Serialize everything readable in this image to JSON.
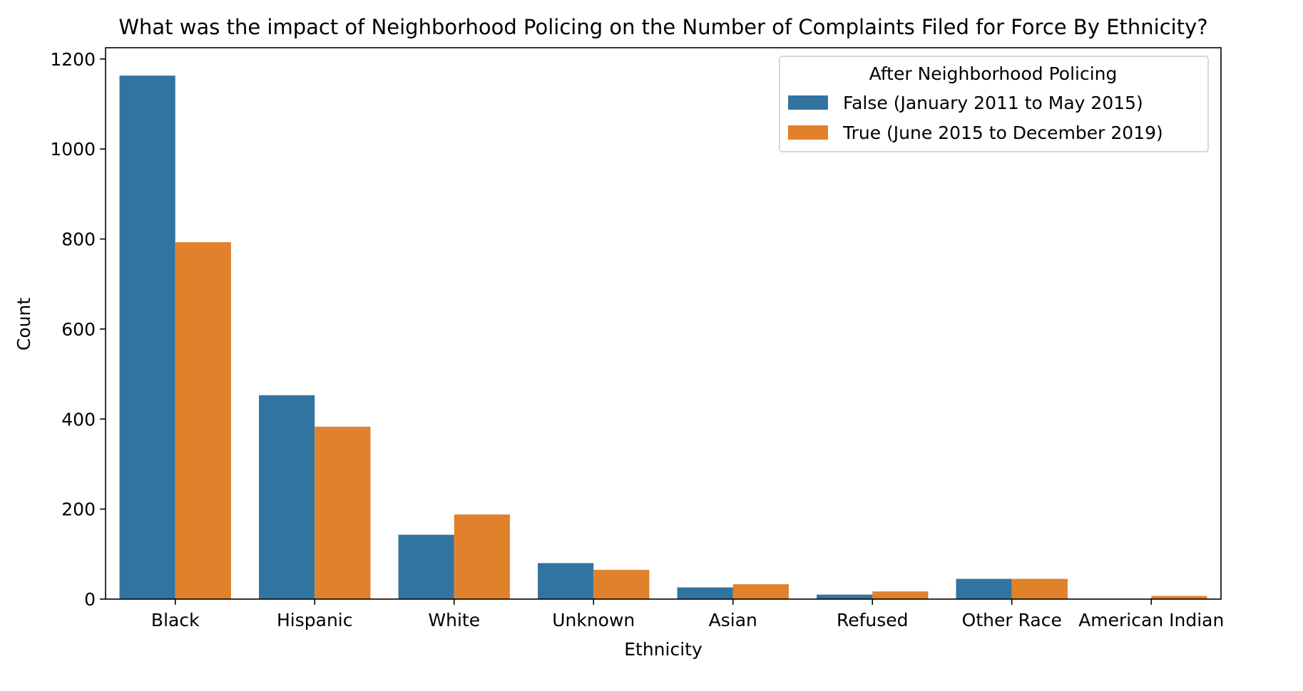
{
  "chart_data": {
    "type": "bar",
    "title": "What was the impact of Neighborhood Policing on the Number of Complaints Filed for Force By Ethnicity?",
    "xlabel": "Ethnicity",
    "ylabel": "Count",
    "ylim": [
      0,
      1225
    ],
    "yticks": [
      0,
      200,
      400,
      600,
      800,
      1000,
      1200
    ],
    "categories": [
      "Black",
      "Hispanic",
      "White",
      "Unknown",
      "Asian",
      "Refused",
      "Other Race",
      "American Indian"
    ],
    "legend": {
      "title": "After Neighborhood Policing",
      "placement": "top-right"
    },
    "series": [
      {
        "name": "False (January 2011 to May 2015)",
        "color": "#3274a1",
        "values": [
          1163,
          453,
          143,
          80,
          26,
          10,
          45,
          0
        ]
      },
      {
        "name": "True (June 2015 to December 2019)",
        "color": "#e1812c",
        "values": [
          793,
          383,
          188,
          65,
          33,
          17,
          45,
          7
        ]
      }
    ],
    "grid": false
  }
}
